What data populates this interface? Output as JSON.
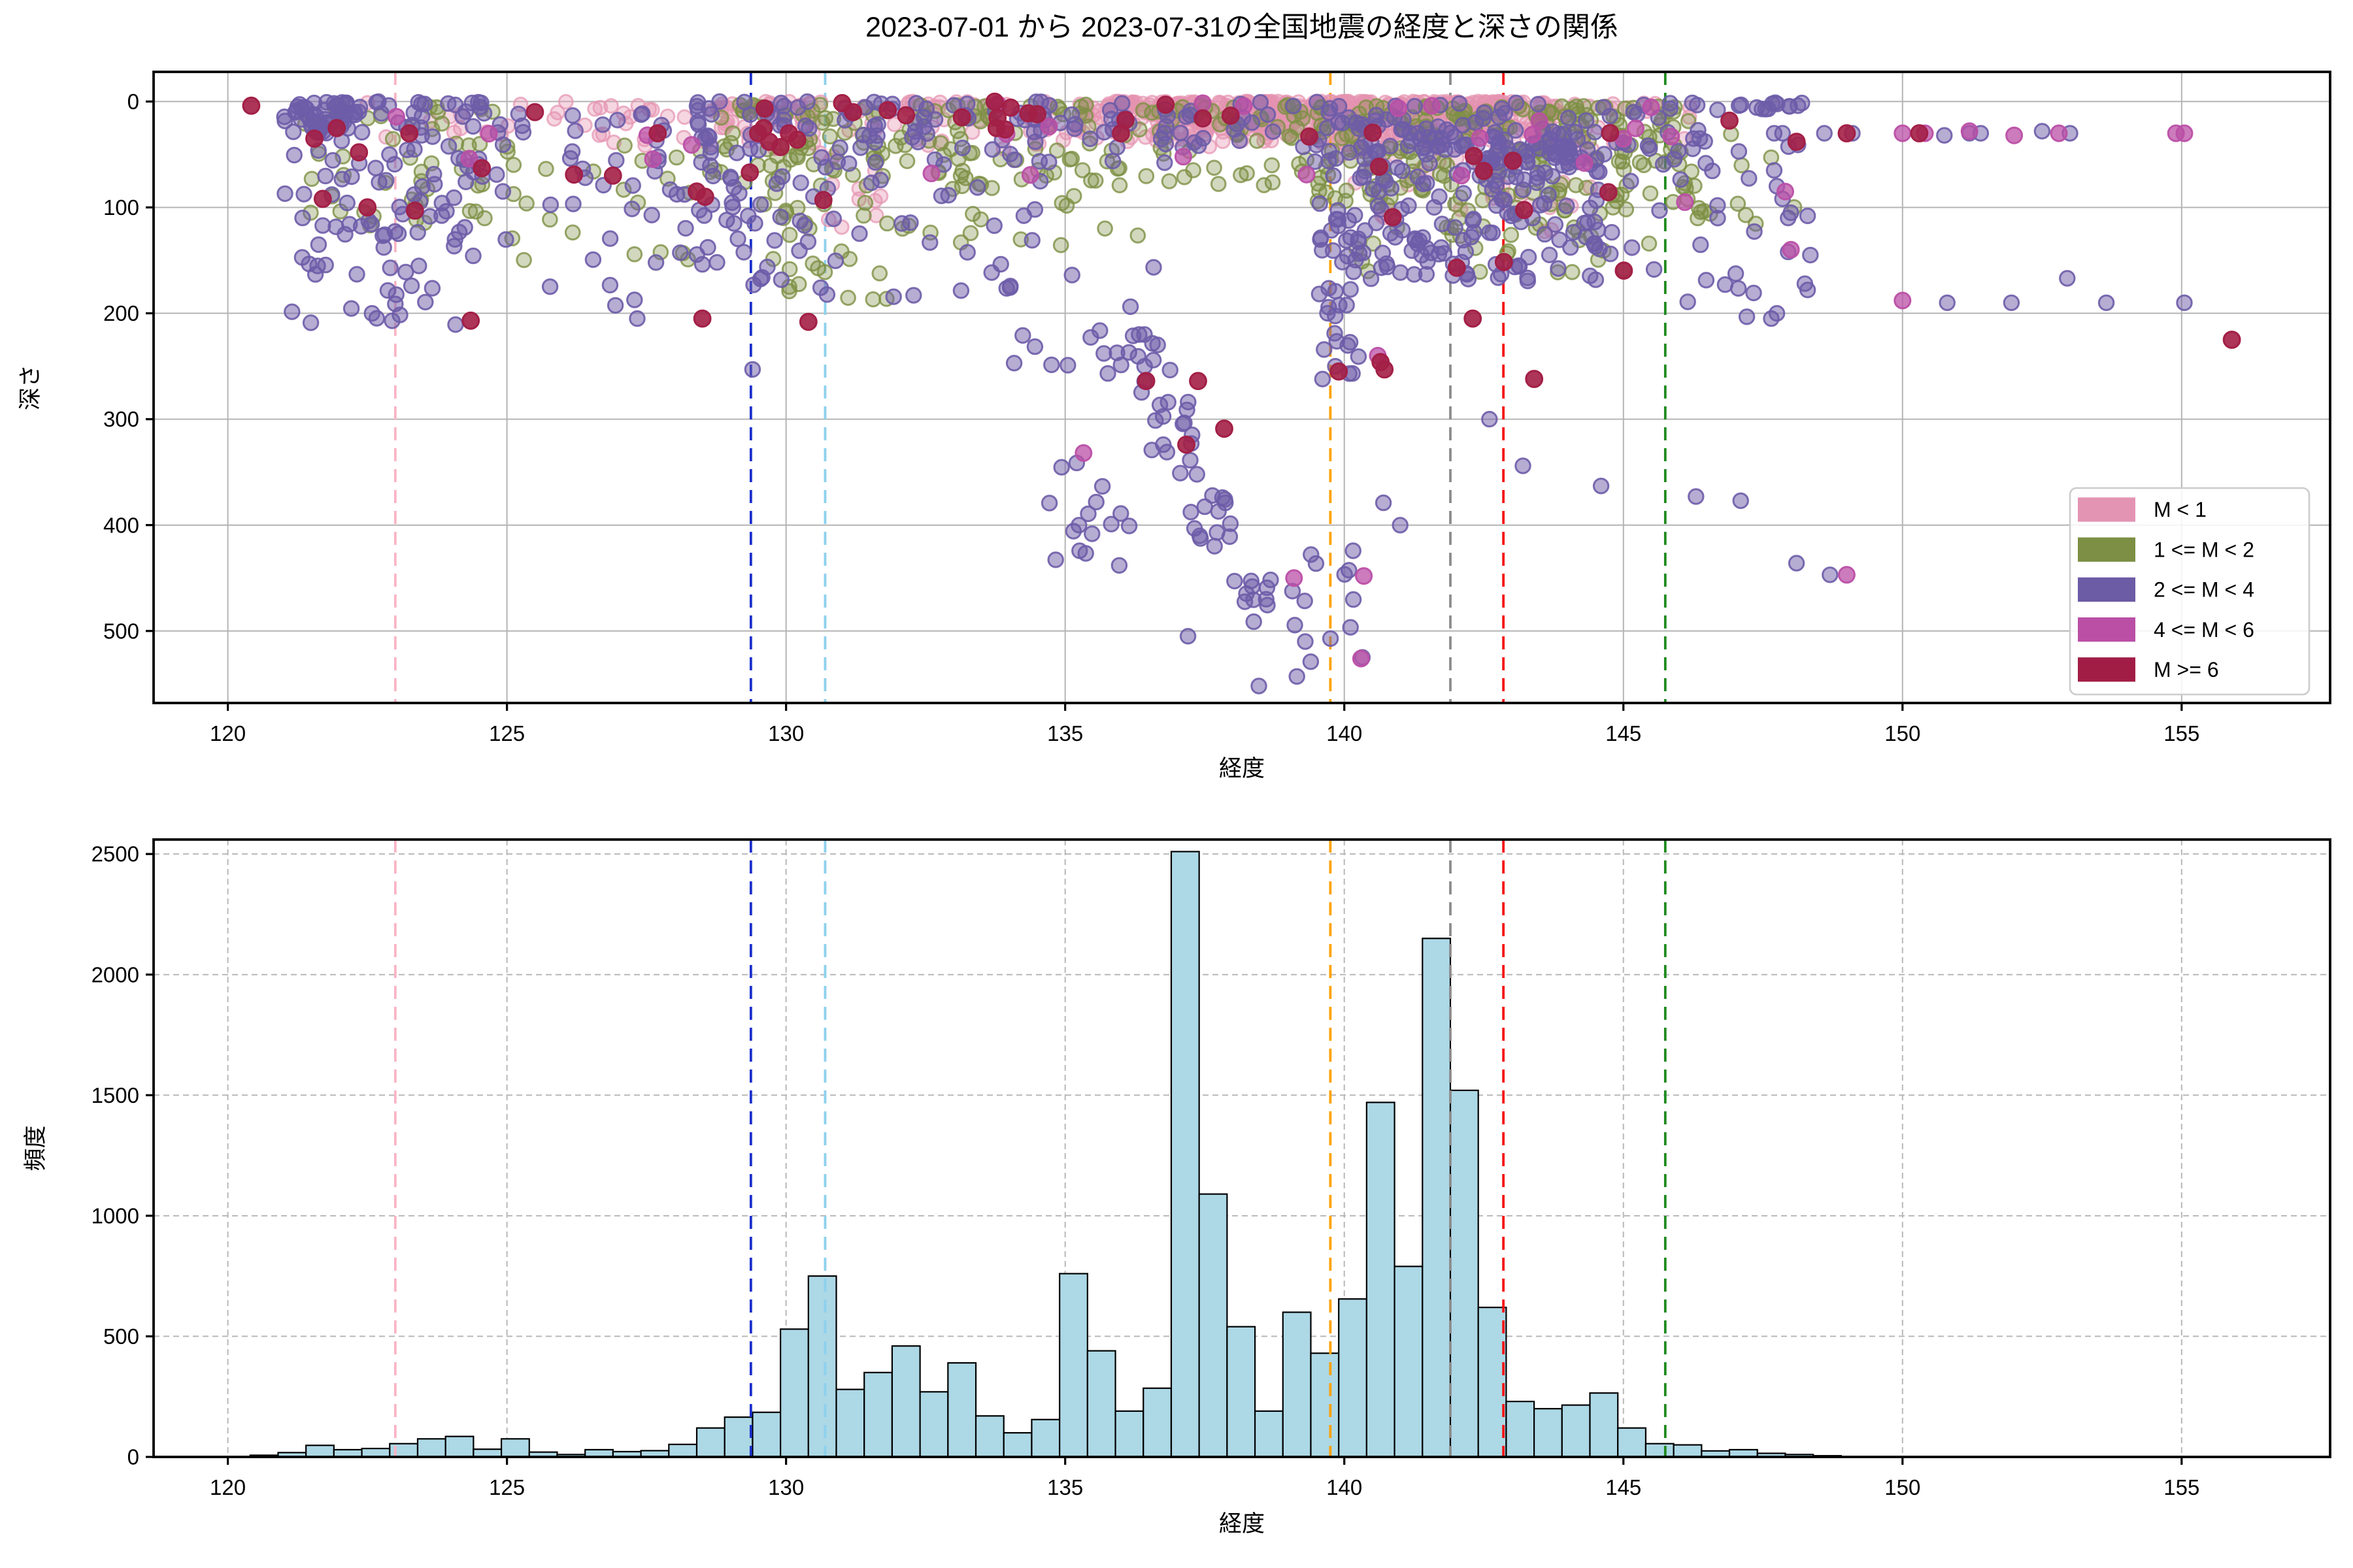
{
  "title": "2023-07-01 から 2023-07-31の全国地震の経度と深さの関係",
  "axes": {
    "xlabel": "経度",
    "top_ylabel": "深さ",
    "bottom_ylabel": "頻度",
    "x_ticks": [
      120,
      125,
      130,
      135,
      140,
      145,
      150,
      155
    ],
    "top_y_ticks": [
      0,
      100,
      200,
      300,
      400,
      500
    ],
    "bottom_y_ticks": [
      0,
      500,
      1000,
      1500,
      2000,
      2500
    ],
    "xlim": [
      118.67,
      157.66
    ],
    "top_ylim": [
      -28,
      568
    ],
    "bottom_ylim": [
      0,
      2560
    ]
  },
  "style": {
    "background": "#ffffff",
    "spine_color": "#000000",
    "grid_color_top": "#b4b4b4",
    "grid_color_bottom": "#b8b8b8",
    "bar_fill": "#add8e6",
    "bar_edge": "#000000"
  },
  "legend": {
    "entries": [
      {
        "label": "M < 1",
        "color": "#e394b3"
      },
      {
        "label": "1 <= M < 2",
        "color": "#7c8f44"
      },
      {
        "label": "2 <= M < 4",
        "color": "#6c5ba5"
      },
      {
        "label": "4 <= M < 6",
        "color": "#ba4fa5"
      },
      {
        "label": "M >= 6",
        "color": "#a21d45"
      }
    ]
  },
  "vlines": [
    {
      "x": 123.0,
      "color": "#f9b4c4",
      "name": "pink-line"
    },
    {
      "x": 129.37,
      "color": "#1a30cc",
      "name": "blue-line"
    },
    {
      "x": 130.7,
      "color": "#8ed1ee",
      "name": "skyblue-line"
    },
    {
      "x": 139.75,
      "color": "#ffa200",
      "name": "orange-line"
    },
    {
      "x": 141.9,
      "color": "#8c8c8c",
      "name": "gray-line"
    },
    {
      "x": 142.85,
      "color": "#f51111",
      "name": "red-line"
    },
    {
      "x": 145.75,
      "color": "#1e8a1e",
      "name": "green-line"
    }
  ],
  "chart_data": [
    {
      "type": "scatter",
      "title": "2023-07-01 から 2023-07-31の全国地震の経度と深さの関係",
      "xlabel": "経度",
      "ylabel": "深さ",
      "xlim": [
        118.67,
        157.66
      ],
      "ylim_depth_inverted": [
        0,
        568
      ],
      "grid": "solid",
      "legend_position": "lower right",
      "marker": {
        "radius": 5.7,
        "stroke_width": 1.5
      },
      "series": [
        {
          "name": "M < 1",
          "color": "#e593b1",
          "fill_opacity": 0.38,
          "stroke_opacity": 0.7,
          "radius": 5.2,
          "clusters": [
            [
              300,
              135.2,
              143.8,
              0,
              38,
              1.6
            ],
            [
              120,
              136.8,
              142.8,
              0,
              30,
              1.6
            ],
            [
              190,
              131.0,
              146.2,
              0,
              45,
              1.6
            ],
            [
              15,
              122.5,
              126.5,
              0,
              35,
              1.4
            ],
            [
              45,
              126.5,
              130.8,
              0,
              45,
              1.5
            ],
            [
              25,
              128.8,
              130.6,
              0,
              25,
              1.4
            ],
            [
              40,
              139.8,
              144.5,
              40,
              130,
              1.2
            ],
            [
              12,
              130.6,
              131.9,
              40,
              150,
              1.0
            ]
          ],
          "points": []
        },
        {
          "name": "1 <= M < 2",
          "color": "#7d9044",
          "fill_opacity": 0.35,
          "stroke_opacity": 0.8,
          "radius": 5.4,
          "clusters": [
            [
              200,
              139.3,
              146.3,
              4,
              95,
              1.4
            ],
            [
              160,
              128.8,
              139.3,
              3,
              80,
              1.5
            ],
            [
              45,
              129.6,
              132.2,
              30,
              190,
              1.2
            ],
            [
              45,
              121.3,
              124.8,
              5,
              130,
              1.3
            ],
            [
              25,
              125.0,
              128.8,
              40,
              150,
              1.2
            ],
            [
              55,
              140.0,
              145.5,
              60,
              165,
              1.2
            ],
            [
              12,
              146.3,
              148.3,
              30,
              120,
              1.0
            ],
            [
              20,
              132.5,
              136.5,
              50,
              140,
              1.2
            ]
          ],
          "points": []
        },
        {
          "name": "2 <= M < 4",
          "color": "#6d5ca8",
          "fill_opacity": 0.5,
          "stroke_opacity": 0.9,
          "radius": 5.6,
          "clusters": [
            [
              120,
              121.0,
              124.6,
              0,
              215,
              1.8
            ],
            [
              45,
              121.25,
              122.3,
              0,
              30,
              1.2
            ],
            [
              45,
              124.8,
              128.4,
              10,
              205,
              1.5
            ],
            [
              70,
              128.4,
              130.5,
              0,
              175,
              1.7
            ],
            [
              45,
              130.5,
              134.6,
              15,
              195,
              1.5
            ],
            [
              170,
              131.0,
              146.5,
              0,
              60,
              1.4
            ],
            [
              20,
              133.8,
              136.6,
              150,
              265,
              1.0
            ],
            [
              16,
              134.7,
              136.4,
              330,
              440,
              1.0
            ],
            [
              48,
              136.3,
              138.7,
              250,
              480,
              1.0,
              1
            ],
            [
              12,
              139.0,
              140.5,
              395,
              530,
              1.0
            ],
            [
              45,
              139.55,
              140.35,
              55,
              265,
              1.1
            ],
            [
              190,
              140.3,
              144.6,
              25,
              170,
              1.3
            ],
            [
              26,
              144.6,
              148.4,
              25,
              210,
              1.2
            ],
            [
              14,
              146.6,
              148.35,
              0,
              8,
              1.0
            ]
          ],
          "points": [
            [
              129.4,
              253
            ],
            [
              137.2,
              505
            ],
            [
              138.47,
              552
            ],
            [
              139.15,
              543
            ],
            [
              139.4,
              529
            ],
            [
              138.6,
              470
            ],
            [
              139.3,
              510
            ],
            [
              140.7,
              379
            ],
            [
              141.0,
              400
            ],
            [
              142.6,
              300
            ],
            [
              143.2,
              344
            ],
            [
              144.6,
              363
            ],
            [
              146.3,
              373
            ],
            [
              147.1,
              377
            ],
            [
              148.1,
              436
            ],
            [
              148.7,
              447
            ],
            [
              147.7,
              30
            ],
            [
              147.85,
              30
            ],
            [
              148.6,
              30
            ],
            [
              149.1,
              30
            ],
            [
              150.75,
              32
            ],
            [
              151.4,
              30
            ],
            [
              152.5,
              28
            ],
            [
              150.8,
              190
            ],
            [
              151.95,
              190
            ],
            [
              152.95,
              167
            ],
            [
              153.65,
              190
            ],
            [
              155.05,
              190
            ],
            [
              147.65,
              205
            ],
            [
              147.75,
              200
            ],
            [
              148.25,
              172
            ],
            [
              148.3,
              178
            ],
            [
              147.7,
              65
            ],
            [
              147.75,
              80
            ],
            [
              147.85,
              92
            ],
            [
              147.95,
              110
            ],
            [
              148.0,
              105
            ],
            [
              148.3,
              108
            ],
            [
              148.35,
              145
            ],
            [
              147.95,
              142
            ],
            [
              151.2,
              30
            ],
            [
              153.0,
              30
            ]
          ]
        },
        {
          "name": "4 <= M < 6",
          "color": "#bb4fa6",
          "fill_opacity": 0.75,
          "stroke_opacity": 0.95,
          "radius": 6.0,
          "clusters": [
            [
              18,
              131.5,
              146.0,
              0,
              70,
              1.4
            ],
            [
              6,
              121.5,
              128.5,
              0,
              60,
              1.3
            ]
          ],
          "points": [
            [
              135.33,
              332
            ],
            [
              139.1,
              450
            ],
            [
              140.35,
              448
            ],
            [
              140.3,
              526
            ],
            [
              140.6,
              240
            ],
            [
              147.9,
              85
            ],
            [
              148.0,
              140
            ],
            [
              150.0,
              188
            ],
            [
              149.0,
              447
            ],
            [
              150.0,
              30
            ],
            [
              150.4,
              30
            ],
            [
              152.0,
              32
            ],
            [
              152.8,
              30
            ],
            [
              154.9,
              30
            ],
            [
              155.05,
              30
            ],
            [
              151.2,
              28
            ],
            [
              146.1,
              95
            ],
            [
              142.1,
              70
            ],
            [
              144.3,
              58
            ]
          ]
        },
        {
          "name": "M >= 6",
          "color": "#a31f46",
          "fill_opacity": 0.9,
          "stroke_opacity": 1.0,
          "radius": 6.2,
          "clusters": [
            [
              14,
              128.5,
              139.5,
              0,
              40,
              1.4
            ],
            [
              12,
              139.6,
              145.9,
              20,
              160,
              1.1
            ]
          ],
          "points": [
            [
              120.42,
              4
            ],
            [
              121.55,
              35
            ],
            [
              121.7,
              92
            ],
            [
              121.95,
              25
            ],
            [
              122.35,
              48
            ],
            [
              122.5,
              100
            ],
            [
              123.25,
              30
            ],
            [
              123.35,
              103
            ],
            [
              124.55,
              63
            ],
            [
              124.35,
              207
            ],
            [
              125.5,
              10
            ],
            [
              126.2,
              69
            ],
            [
              126.9,
              70
            ],
            [
              127.7,
              30
            ],
            [
              128.4,
              85
            ],
            [
              128.55,
              90
            ],
            [
              129.35,
              67
            ],
            [
              130.67,
              93
            ],
            [
              128.5,
              205
            ],
            [
              129.5,
              30
            ],
            [
              129.7,
              38
            ],
            [
              129.9,
              43
            ],
            [
              130.05,
              30
            ],
            [
              130.2,
              36
            ],
            [
              129.6,
              25
            ],
            [
              130.4,
              208
            ],
            [
              131.2,
              10
            ],
            [
              132.15,
              13
            ],
            [
              133.15,
              15
            ],
            [
              134.5,
              12
            ],
            [
              136.0,
              30
            ],
            [
              136.45,
              264
            ],
            [
              137.17,
              324
            ],
            [
              137.38,
              264
            ],
            [
              137.85,
              309
            ],
            [
              139.9,
              255
            ],
            [
              140.65,
              246
            ],
            [
              140.72,
              253
            ],
            [
              142.3,
              205
            ],
            [
              143.4,
              262
            ],
            [
              146.9,
              18
            ],
            [
              148.1,
              38
            ],
            [
              149.0,
              30
            ],
            [
              150.3,
              30
            ],
            [
              155.9,
              225
            ]
          ]
        }
      ]
    },
    {
      "type": "histogram",
      "xlabel": "経度",
      "ylabel": "頻度",
      "xlim": [
        118.67,
        157.66
      ],
      "ylim": [
        0,
        2560
      ],
      "grid": "dashed",
      "bar_color": "#add8e6",
      "bar_edge_color": "#000000",
      "bin_start": 120.4,
      "bin_width": 0.5,
      "values": [
        7,
        18,
        48,
        30,
        35,
        55,
        75,
        85,
        32,
        75,
        20,
        10,
        30,
        22,
        26,
        52,
        120,
        165,
        185,
        530,
        750,
        280,
        350,
        460,
        270,
        390,
        170,
        100,
        155,
        760,
        440,
        190,
        285,
        2510,
        1090,
        540,
        190,
        600,
        430,
        655,
        1470,
        790,
        2150,
        1520,
        620,
        230,
        200,
        215,
        265,
        120,
        55,
        50,
        25,
        30,
        15,
        10,
        5
      ]
    }
  ]
}
